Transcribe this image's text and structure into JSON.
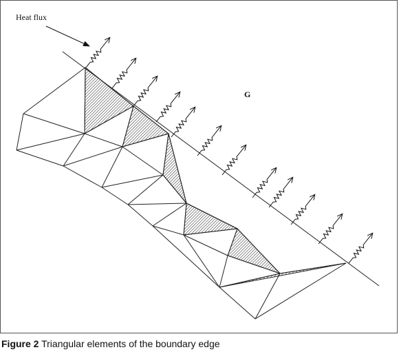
{
  "diagram": {
    "heat_flux_label": "Heat flux",
    "region_label": "G"
  },
  "caption": {
    "label": "Figure 2",
    "text": " Triangular elements of the boundary edge"
  },
  "colors": {
    "line": "#222222",
    "hatch": "#333333"
  }
}
